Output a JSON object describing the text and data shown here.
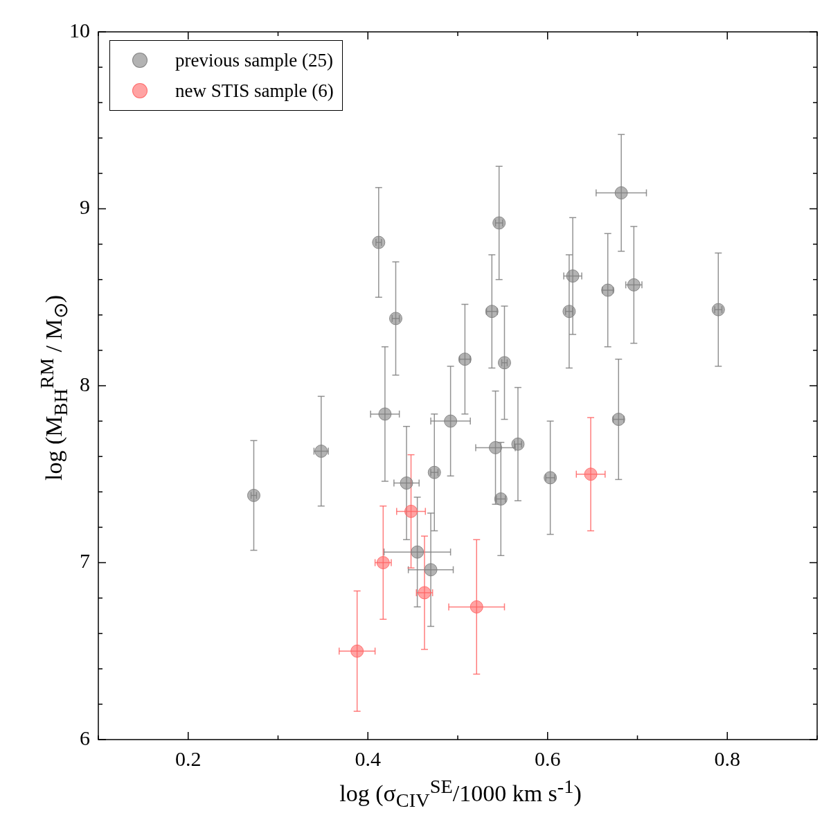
{
  "chart_data": {
    "type": "scatter",
    "xlabel": "log (σ$_{CIV}$$^{SE}$/1000 km s$^{-1}$)",
    "ylabel": "log (M$_{BH}$$^{RM}$ / M$_{⊙}$)",
    "xlim": [
      0.1,
      0.9
    ],
    "ylim": [
      6,
      10
    ],
    "xticks": [
      {
        "value": 0.1,
        "label": null
      },
      0.2,
      {
        "value": 0.3,
        "label": null
      },
      0.4,
      {
        "value": 0.5,
        "label": null
      },
      0.6,
      {
        "value": 0.7,
        "label": null
      },
      0.8,
      {
        "value": 0.9,
        "label": null
      }
    ],
    "yticks": [
      6,
      {
        "value": 6.2,
        "label": null
      },
      {
        "value": 6.4,
        "label": null
      },
      {
        "value": 6.6,
        "label": null
      },
      {
        "value": 6.8,
        "label": null
      },
      7,
      {
        "value": 7.2,
        "label": null
      },
      {
        "value": 7.4,
        "label": null
      },
      {
        "value": 7.6,
        "label": null
      },
      {
        "value": 7.8,
        "label": null
      },
      8,
      {
        "value": 8.2,
        "label": null
      },
      {
        "value": 8.4,
        "label": null
      },
      {
        "value": 8.6,
        "label": null
      },
      {
        "value": 8.8,
        "label": null
      },
      9,
      {
        "value": 9.2,
        "label": null
      },
      {
        "value": 9.4,
        "label": null
      },
      {
        "value": 9.6,
        "label": null
      },
      {
        "value": 9.8,
        "label": null
      },
      10
    ],
    "grid": false,
    "legend": "top left",
    "marker": "circle",
    "series": [
      {
        "name": "previous sample (25)",
        "color": "#808080",
        "x": [
          0.273,
          0.348,
          0.412,
          0.431,
          0.419,
          0.443,
          0.455,
          0.47,
          0.474,
          0.492,
          0.508,
          0.538,
          0.546,
          0.552,
          0.542,
          0.548,
          0.567,
          0.603,
          0.624,
          0.628,
          0.667,
          0.682,
          0.696,
          0.679,
          0.79
        ],
        "values": [
          7.38,
          7.63,
          8.81,
          8.38,
          7.84,
          7.45,
          7.06,
          6.96,
          7.51,
          7.8,
          8.15,
          8.42,
          8.92,
          8.13,
          7.65,
          7.36,
          7.67,
          7.48,
          8.42,
          8.62,
          8.54,
          9.09,
          8.57,
          7.81,
          8.43
        ],
        "errors": [
          0.31,
          0.31,
          0.31,
          0.32,
          0.38,
          0.32,
          0.31,
          0.32,
          0.33,
          0.31,
          0.31,
          0.32,
          0.32,
          0.32,
          0.32,
          0.32,
          0.32,
          0.32,
          0.32,
          0.33,
          0.32,
          0.33,
          0.33,
          0.34,
          0.32
        ],
        "xerrors": [
          0.003,
          0.008,
          0.003,
          0.004,
          0.016,
          0.014,
          0.037,
          0.025,
          0.004,
          0.022,
          0.006,
          0.006,
          0.004,
          0.003,
          0.022,
          0.005,
          0.004,
          0.005,
          0.004,
          0.01,
          0.006,
          0.028,
          0.009,
          0.006,
          0.004
        ]
      },
      {
        "name": "new STIS sample (6)",
        "color": "#ff6666",
        "x": [
          0.388,
          0.417,
          0.448,
          0.463,
          0.521,
          0.648
        ],
        "values": [
          6.5,
          7.0,
          7.29,
          6.83,
          6.75,
          7.5
        ],
        "errors": [
          0.34,
          0.32,
          0.32,
          0.32,
          0.38,
          0.32
        ],
        "xerrors": [
          0.02,
          0.009,
          0.016,
          0.009,
          0.031,
          0.016
        ]
      }
    ]
  }
}
